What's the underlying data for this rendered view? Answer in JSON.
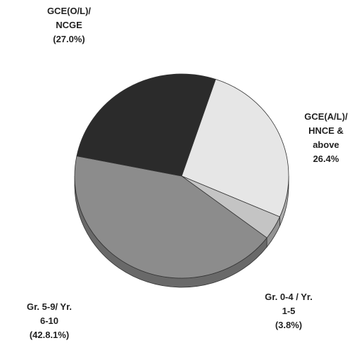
{
  "chart_data": {
    "type": "pie",
    "categories": [
      "GCE(A/L)/\nHNCE &\nabove",
      "Gr. 0-4 /  Yr.\n1-5",
      "Gr. 5-9/   Yr.\n6-10",
      "GCE(O/L)/\nNCGE"
    ],
    "values": [
      26.4,
      3.8,
      42.8,
      27.0
    ],
    "value_labels": [
      "26.4%",
      "(3.8%)",
      "(42.8.1%)",
      "(27.0%)"
    ],
    "colors": [
      "#e6e6e6",
      "#c4c4c4",
      "#8c8c8c",
      "#2b2b2b"
    ]
  }
}
